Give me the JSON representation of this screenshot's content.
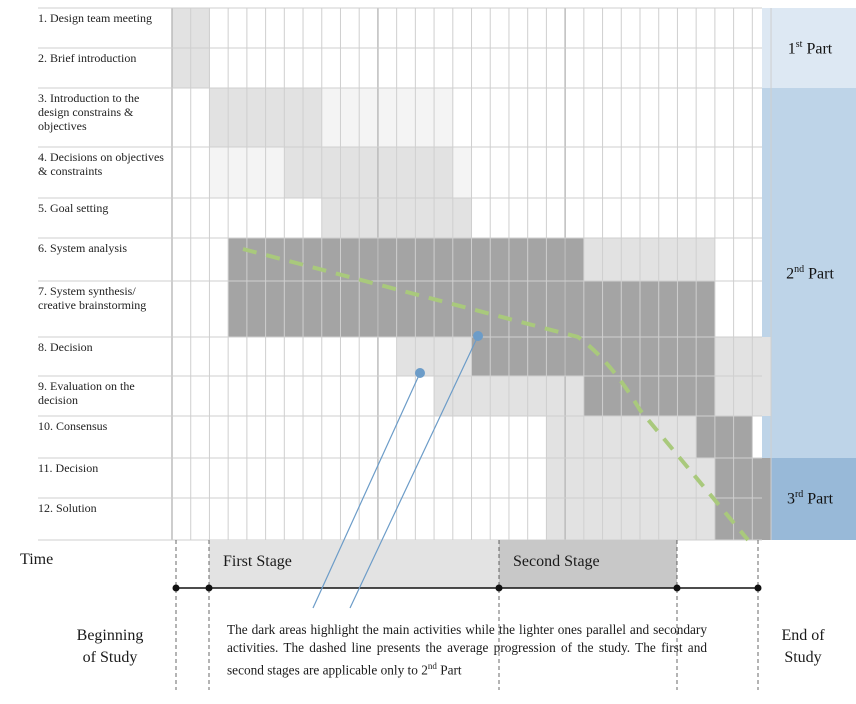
{
  "tasks": [
    {
      "label": "1. Design team meeting",
      "cells": "22000000000000000000000000000000"
    },
    {
      "label": "2. Brief introduction",
      "cells": "22000000000000000000000000000000"
    },
    {
      "label": "3. Introduction to the design constrains & objectives",
      "cells": "00222222111111100000000000000000"
    },
    {
      "label": "4. Decisions on objectives & constraints",
      "cells": "00111122222222210000000000000000"
    },
    {
      "label": "5. Goal setting",
      "cells": "00000000222222220000000000000000"
    },
    {
      "label": "6. System analysis",
      "cells": "00033333333333333333332222222000"
    },
    {
      "label": "7. System synthesis/ creative brainstorming",
      "cells": "00033333333333333333333333333000"
    },
    {
      "label": "8. Decision",
      "cells": "00000000000022223333333333333222"
    },
    {
      "label": "9. Evaluation on the decision",
      "cells": "00000000000000222222223333333222"
    },
    {
      "label": "10. Consensus",
      "cells": "00000000000000000000222222223330"
    },
    {
      "label": "11. Decision",
      "cells": "00000000000000000000222222222333"
    },
    {
      "label": "12. Solution",
      "cells": "00000000000000000000222222222333"
    }
  ],
  "parts": [
    {
      "main": "1",
      "sup": "st",
      "rest": " Part"
    },
    {
      "main": "2",
      "sup": "nd",
      "rest": " Part"
    },
    {
      "main": "3",
      "sup": "rd",
      "rest": " Part"
    }
  ],
  "time_label": "Time",
  "stages": {
    "first": "First Stage",
    "second": "Second Stage"
  },
  "beginning": {
    "line1": "Beginning",
    "line2": "of Study"
  },
  "end": {
    "line1": "End of",
    "line2": "Study"
  },
  "note": {
    "text": "The dark areas highlight the main activities while the lighter ones parallel and secondary activities. The dashed line presents the average progression of the study. The first and second stages are applicable only to 2",
    "sup": "nd",
    "tail": " Part"
  },
  "colors": {
    "shade_1": "#f4f4f4",
    "shade_2": "#e2e2e2",
    "shade_3": "#a4a4a4",
    "grid": "#cfcfcf",
    "part_1st": "#dde8f3",
    "part_2nd": "#bed4e8",
    "part_3rd": "#98b9d8",
    "dashed_line": "#a9c97c",
    "pointer": "#6c9cc8",
    "stage_first": "#e3e3e3",
    "stage_second": "#c8c8c8"
  }
}
